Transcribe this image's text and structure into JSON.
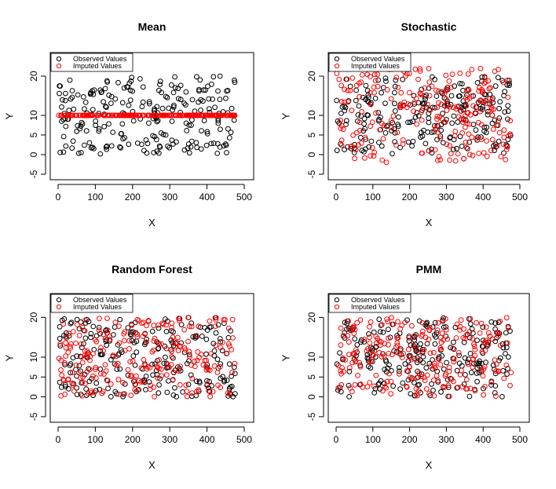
{
  "chart_data": [
    {
      "type": "scatter",
      "title": "Mean",
      "xlabel": "X",
      "ylabel": "Y",
      "xlim": [
        0,
        500
      ],
      "ylim": [
        -5,
        25
      ],
      "x_ticks": [
        0,
        100,
        200,
        300,
        400,
        500
      ],
      "y_ticks": [
        -5,
        0,
        5,
        10,
        20
      ],
      "legend": {
        "position": "top-left",
        "entries": [
          "Observed Values",
          "Imputed Values"
        ]
      },
      "colors": {
        "observed": "#000000",
        "imputed": "#ff0000"
      },
      "observed": {
        "n": 240,
        "x_range": [
          1,
          476
        ],
        "y_range": [
          0,
          20
        ],
        "distribution": "uniform"
      },
      "imputed": {
        "n": 240,
        "x_range": [
          1,
          476
        ],
        "value": 10,
        "distribution": "constant at mean"
      }
    },
    {
      "type": "scatter",
      "title": "Stochastic",
      "xlabel": "X",
      "ylabel": "Y",
      "xlim": [
        0,
        500
      ],
      "ylim": [
        -5,
        25
      ],
      "x_ticks": [
        0,
        100,
        200,
        300,
        400,
        500
      ],
      "y_ticks": [
        -5,
        0,
        5,
        10,
        20
      ],
      "legend": {
        "position": "top-left",
        "entries": [
          "Observed Values",
          "Imputed Values"
        ]
      },
      "colors": {
        "observed": "#000000",
        "imputed": "#ff0000"
      },
      "observed": {
        "n": 240,
        "x_range": [
          1,
          476
        ],
        "y_range": [
          0,
          20
        ],
        "distribution": "uniform"
      },
      "imputed": {
        "n": 240,
        "x_range": [
          1,
          476
        ],
        "y_range": [
          -4,
          23
        ],
        "distribution": "mean plus noise"
      }
    },
    {
      "type": "scatter",
      "title": "Random Forest",
      "xlabel": "X",
      "ylabel": "Y",
      "xlim": [
        0,
        500
      ],
      "ylim": [
        -5,
        25
      ],
      "x_ticks": [
        0,
        100,
        200,
        300,
        400,
        500
      ],
      "y_ticks": [
        -5,
        0,
        5,
        10,
        20
      ],
      "legend": {
        "position": "top-left",
        "entries": [
          "Observed Values",
          "Imputed Values"
        ]
      },
      "colors": {
        "observed": "#000000",
        "imputed": "#ff0000"
      },
      "observed": {
        "n": 240,
        "x_range": [
          1,
          476
        ],
        "y_range": [
          0,
          20
        ],
        "distribution": "uniform"
      },
      "imputed": {
        "n": 240,
        "x_range": [
          1,
          476
        ],
        "y_range": [
          0,
          20
        ],
        "distribution": "uniform"
      }
    },
    {
      "type": "scatter",
      "title": "PMM",
      "xlabel": "X",
      "ylabel": "Y",
      "xlim": [
        0,
        500
      ],
      "ylim": [
        -5,
        25
      ],
      "x_ticks": [
        0,
        100,
        200,
        300,
        400,
        500
      ],
      "y_ticks": [
        -5,
        0,
        5,
        10,
        20
      ],
      "legend": {
        "position": "top-left",
        "entries": [
          "Observed Values",
          "Imputed Values"
        ]
      },
      "colors": {
        "observed": "#000000",
        "imputed": "#ff0000"
      },
      "observed": {
        "n": 240,
        "x_range": [
          1,
          476
        ],
        "y_range": [
          0,
          20
        ],
        "distribution": "uniform"
      },
      "imputed": {
        "n": 240,
        "x_range": [
          1,
          476
        ],
        "y_range": [
          0,
          20
        ],
        "distribution": "uniform"
      }
    }
  ]
}
